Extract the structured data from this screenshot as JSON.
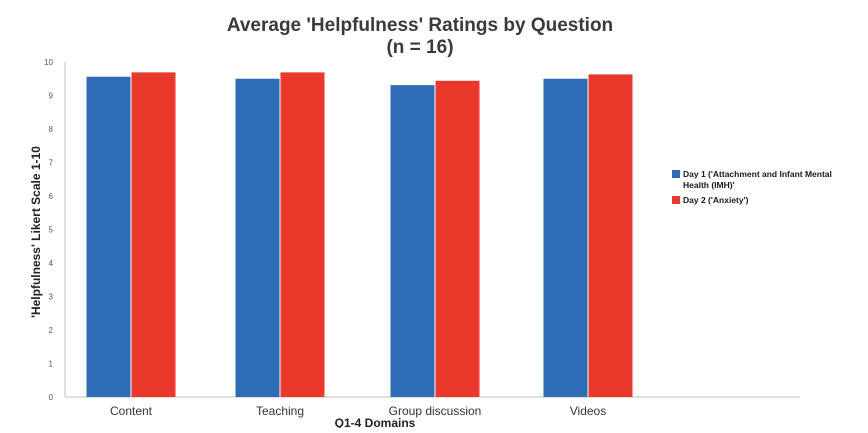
{
  "chart_data": {
    "type": "bar",
    "title": "Average 'Helpfulness' Ratings by Question",
    "subtitle": "(n = 16)",
    "xlabel": "Q1-4 Domains",
    "ylabel": "'Helpfulness' Likert Scale 1-10",
    "categories": [
      "Content",
      "Teaching",
      "Group discussion",
      "Videos"
    ],
    "yticks": [
      "0",
      "1",
      "2",
      "3",
      "4",
      "5",
      "6",
      "7",
      "8",
      "9",
      "10"
    ],
    "ylim": [
      0,
      10
    ],
    "grid": false,
    "legend_position": "right",
    "series": [
      {
        "name_line1": "Day 1 ('Attachment and Infant Mental",
        "name_line2": "Health (IMH)'",
        "color": "#2e6db5",
        "values": [
          9.56,
          9.5,
          9.31,
          9.5
        ]
      },
      {
        "name_line1": "Day 2 ('Anxiety')",
        "name_line2": "",
        "color": "#e8392a",
        "values": [
          9.69,
          9.69,
          9.44,
          9.63
        ]
      }
    ]
  }
}
